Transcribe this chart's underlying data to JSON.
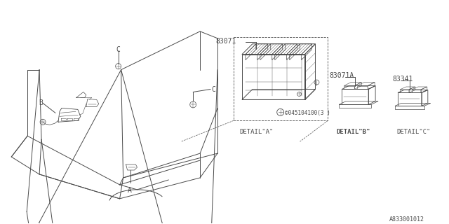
{
  "bg_color": "#ffffff",
  "lc": "#4a4a4a",
  "lw": 0.7,
  "font": "monospace",
  "part_83071": "83071",
  "part_83071A": "83071A",
  "part_83341": "83341",
  "screw_text": "©045104100(3 )",
  "detail_a": "DETAIL\"A\"",
  "detail_b": "DETAIL\"B\"",
  "detail_c": "DETAIL\"C\"",
  "diagram_id": "A833001012"
}
